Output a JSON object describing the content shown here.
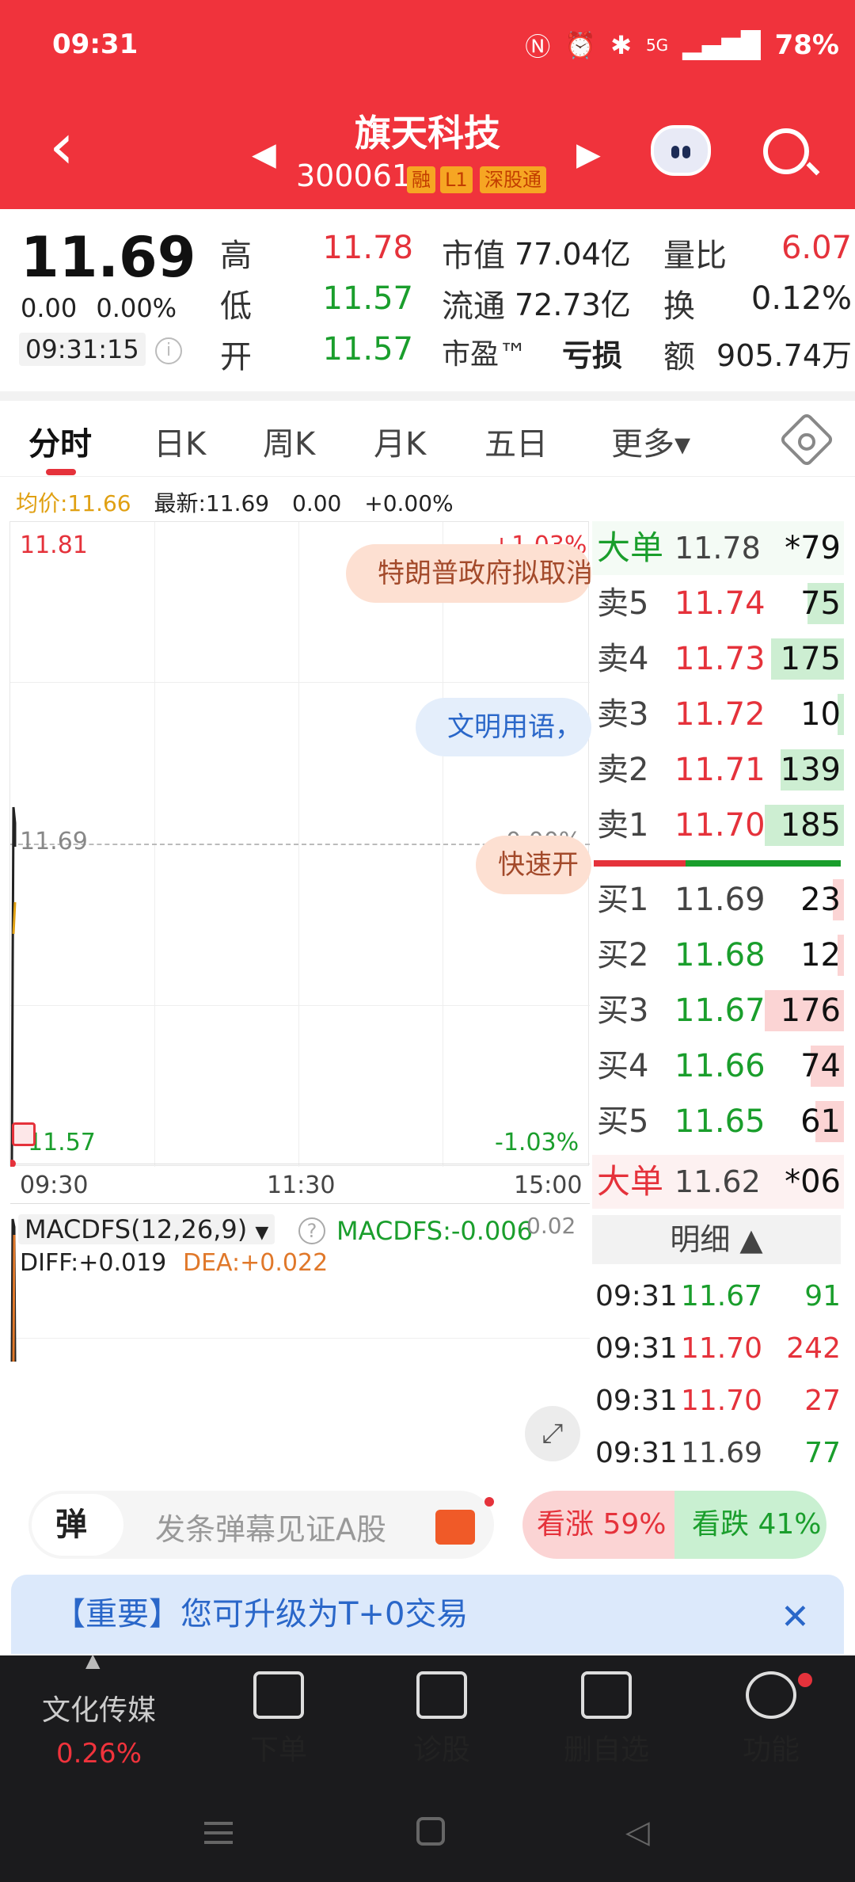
{
  "status_bar": {
    "time": "09:31",
    "network": "5G",
    "battery": "78%"
  },
  "header": {
    "stock_name": "旗天科技",
    "stock_code": "300061",
    "tags": [
      "融",
      "L1",
      "深股通"
    ]
  },
  "quote": {
    "price": "11.69",
    "change": "0.00",
    "change_pct": "0.00%",
    "time": "09:31:15",
    "high_label": "高",
    "high": "11.78",
    "low_label": "低",
    "low": "11.57",
    "open_label": "开",
    "open": "11.57",
    "mktcap_label": "市值",
    "mktcap": "77.04亿",
    "float_label": "流通",
    "float": "72.73亿",
    "pe_label": "市盈™",
    "pe": "亏损",
    "vr_label": "量比",
    "vr": "6.07",
    "turnover_label": "换",
    "turnover": "0.12%",
    "amount_label": "额",
    "amount": "905.74万"
  },
  "tabs": [
    "分时",
    "日K",
    "周K",
    "月K",
    "五日",
    "更多▾"
  ],
  "chart": {
    "avg_label": "均价:11.66",
    "latest_label": "最新:11.69",
    "latest_change": "0.00",
    "latest_pct": "+0.00%",
    "y_top": "11.81",
    "y_mid": "11.69",
    "y_bottom": "11.57",
    "pct_top": "+1.03%",
    "pct_mid": "0.00%",
    "pct_bottom": "-1.03%",
    "x_labels": [
      "09:30",
      "11:30",
      "15:00"
    ],
    "danmu": [
      "特朗普政府拟取消",
      "文明用语，",
      "快速开"
    ],
    "macd_title": "MACDFS(12,26,9)",
    "macd_value": "MACDFS:-0.006",
    "macd_scale": "0.02",
    "diff": "DIFF:+0.019",
    "dea": "DEA:+0.022"
  },
  "order_book": {
    "big_top_label": "大单",
    "big_top_price": "11.78",
    "big_top_vol": "*79",
    "asks": [
      {
        "label": "卖5",
        "price": "11.74",
        "vol": "75"
      },
      {
        "label": "卖4",
        "price": "11.73",
        "vol": "175"
      },
      {
        "label": "卖3",
        "price": "11.72",
        "vol": "10"
      },
      {
        "label": "卖2",
        "price": "11.71",
        "vol": "139"
      },
      {
        "label": "卖1",
        "price": "11.70",
        "vol": "185"
      }
    ],
    "bids": [
      {
        "label": "买1",
        "price": "11.69",
        "vol": "23"
      },
      {
        "label": "买2",
        "price": "11.68",
        "vol": "12"
      },
      {
        "label": "买3",
        "price": "11.67",
        "vol": "176"
      },
      {
        "label": "买4",
        "price": "11.66",
        "vol": "74"
      },
      {
        "label": "买5",
        "price": "11.65",
        "vol": "61"
      }
    ],
    "big_bottom_label": "大单",
    "big_bottom_price": "11.62",
    "big_bottom_vol": "*06"
  },
  "detail": {
    "title": "明细 ▲",
    "rows": [
      {
        "time": "09:31",
        "price": "11.67",
        "vol": "91"
      },
      {
        "time": "09:31",
        "price": "11.70",
        "vol": "242"
      },
      {
        "time": "09:31",
        "price": "11.70",
        "vol": "27"
      },
      {
        "time": "09:31",
        "price": "11.69",
        "vol": "77"
      }
    ]
  },
  "bottom": {
    "danmu_badge": "弹",
    "danmu_placeholder": "发条弹幕见证A股",
    "vote_up": "看涨 59%",
    "vote_down": "看跌 41%",
    "notice": "【重要】您可升级为T+0交易"
  },
  "nav": {
    "sector": "文化传媒",
    "sector_pct": "0.26%",
    "items": [
      "下单",
      "诊股",
      "删自选",
      "功能"
    ]
  }
}
